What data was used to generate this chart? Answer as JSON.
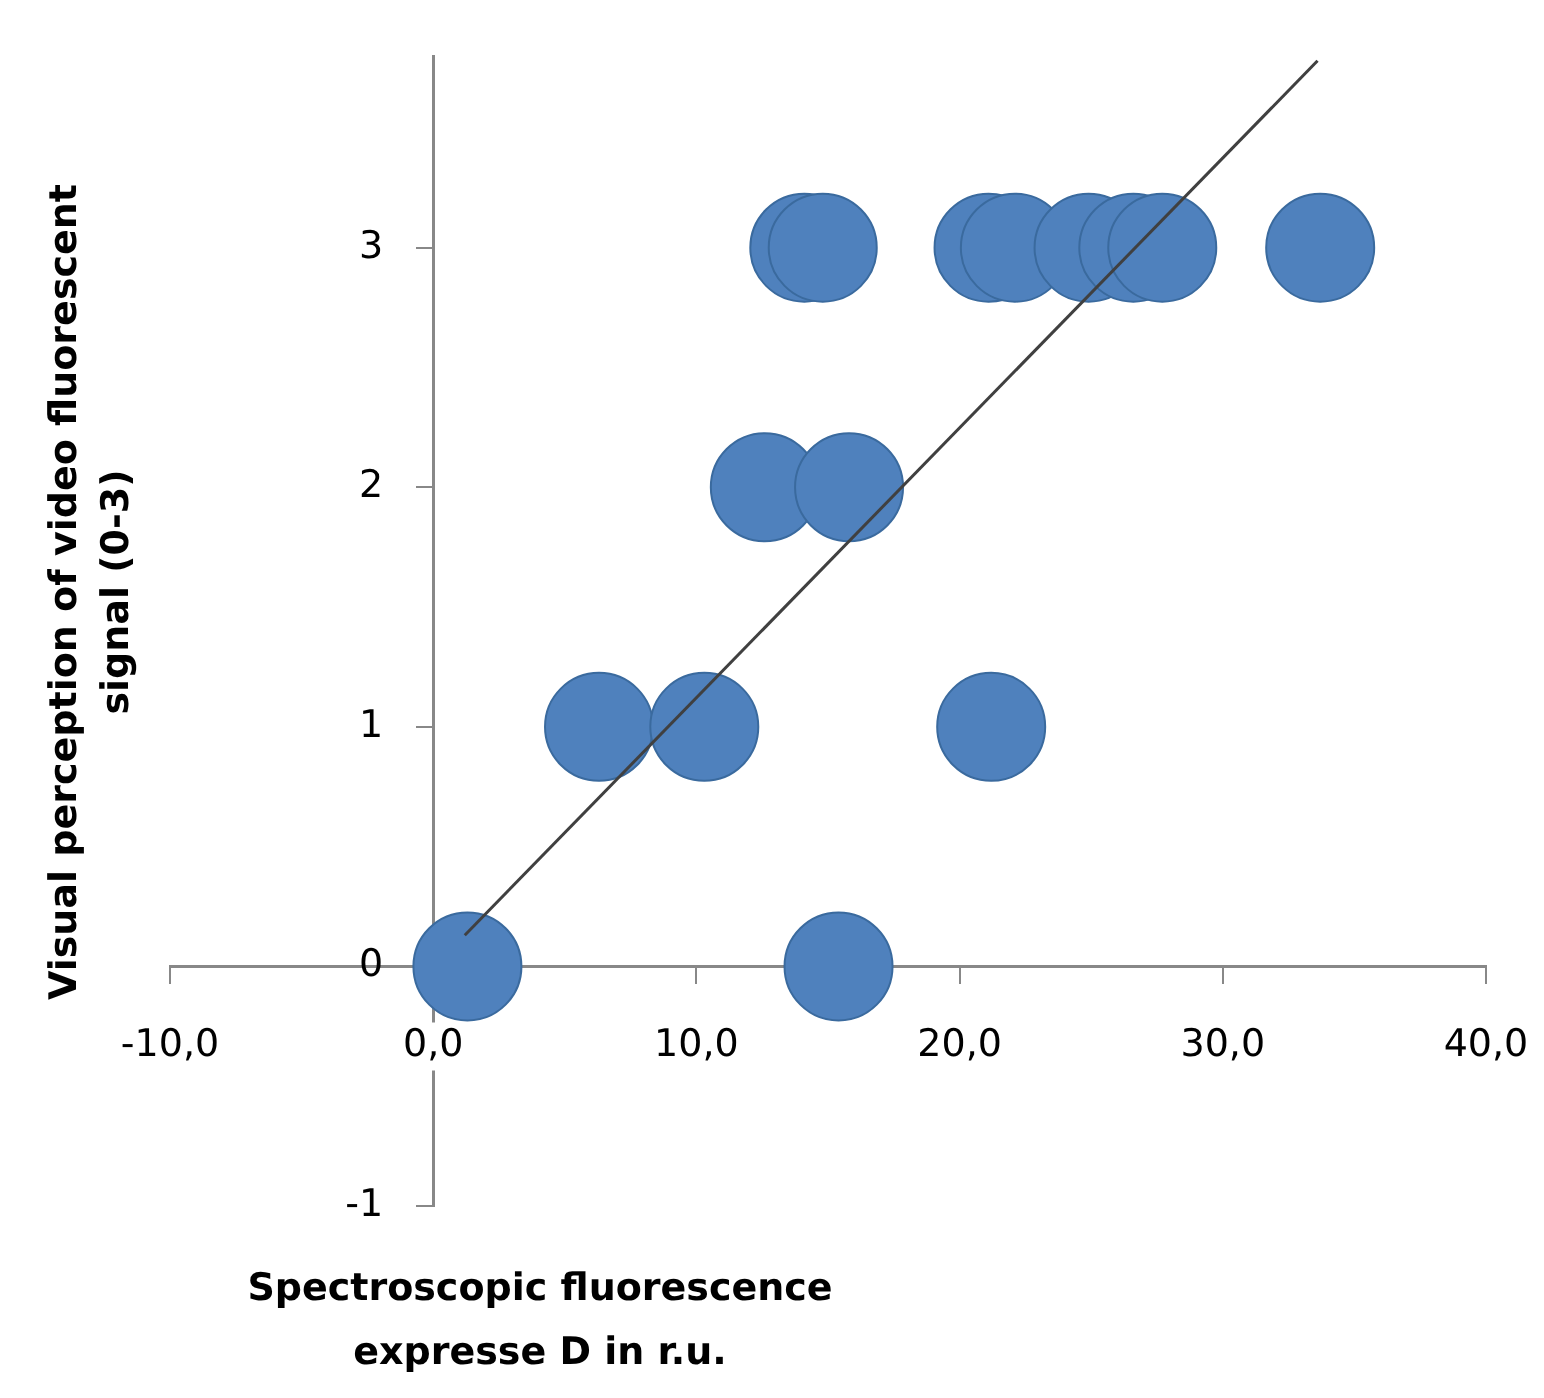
{
  "chart_data": {
    "type": "bubble",
    "xlabel": "Spectroscopic fluorescence\nexpresse D in  r.u.",
    "ylabel": "Visual perception of video fluorescent signal (0-3)",
    "xlim": [
      -10,
      40
    ],
    "xticks": [
      {
        "value": -10,
        "label": "-10,0"
      },
      {
        "value": 0,
        "label": "0,0"
      },
      {
        "value": 10,
        "label": "10,0"
      },
      {
        "value": 20,
        "label": "20,0"
      },
      {
        "value": 30,
        "label": "30,0"
      },
      {
        "value": 40,
        "label": "40,0"
      }
    ],
    "ylim": [
      -1,
      3.8
    ],
    "yticks": [
      -1,
      0,
      1,
      2,
      3
    ],
    "grid": false,
    "legend": false,
    "series": [
      {
        "color": "#4f81bd",
        "x": [
          1.3,
          15.4,
          6.3,
          10.3,
          21.2,
          12.6,
          15.8,
          14.1,
          14.8,
          21.1,
          22.1,
          24.9,
          26.6,
          27.7,
          33.7
        ],
        "values": [
          0,
          0,
          1,
          1,
          1,
          2,
          2,
          3,
          3,
          3,
          3,
          3,
          3,
          3,
          3
        ],
        "sizes": [
          1,
          1,
          1,
          1,
          1,
          1,
          1,
          1,
          1,
          1,
          1,
          1,
          1,
          1,
          1
        ]
      },
      {
        "type": "line",
        "color": "#404040",
        "x": [
          1.2,
          33.6
        ],
        "values": [
          0.13,
          3.78
        ]
      }
    ]
  }
}
